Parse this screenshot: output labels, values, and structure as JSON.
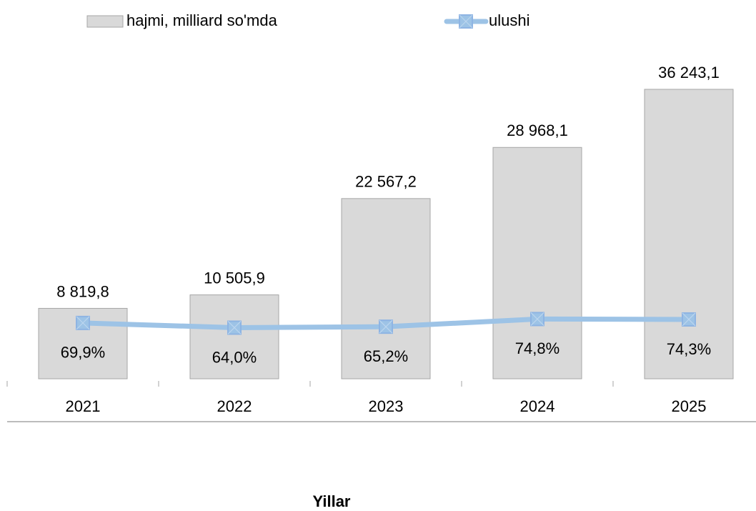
{
  "chart_data": {
    "type": "bar-line",
    "categories": [
      "2021",
      "2022",
      "2023",
      "2024",
      "2025"
    ],
    "series": [
      {
        "name": "hajmi, milliard so'mda",
        "type": "bar",
        "color": "#d9d9d9",
        "values": [
          8819.8,
          10505.9,
          22567.2,
          28968.1,
          36243.1
        ],
        "value_labels": [
          "8 819,8",
          "10 505,9",
          "22 567,2",
          "28 968,1",
          "36 243,1"
        ]
      },
      {
        "name": "ulushi",
        "type": "line",
        "axis": "y2",
        "color": "#9dc3e6",
        "values": [
          69.9,
          64.0,
          65.2,
          74.8,
          74.3
        ],
        "value_labels": [
          "69,9%",
          "64,0%",
          "65,2%",
          "74,8%",
          "74,3%"
        ]
      }
    ],
    "x_label": "Yillar",
    "ylim": [
      0,
      40000
    ],
    "y2lim": [
      0,
      400
    ],
    "legend": "top",
    "grid": false
  }
}
